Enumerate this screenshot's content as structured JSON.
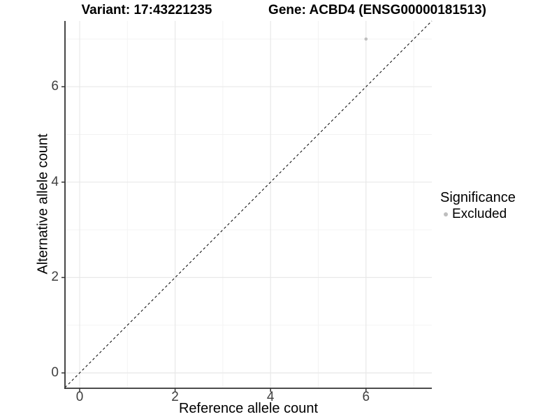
{
  "titles": {
    "variant": "Variant: 17:43221235",
    "gene": "Gene: ACBD4 (ENSG00000181513)"
  },
  "axes": {
    "x_label": "Reference allele count",
    "y_label": "Alternative allele count"
  },
  "legend": {
    "title": "Significance",
    "entries": [
      {
        "label": "Excluded",
        "color": "#bebebe",
        "marker": "dot-icon"
      }
    ],
    "position": "right"
  },
  "colors": {
    "background": "#ffffff",
    "grid_major": "#e8e8e8",
    "grid_minor": "#f2f2f2",
    "axis_line": "#333333",
    "tick_label": "#404040",
    "point": "#bebebe",
    "ref_line": "#000000"
  },
  "chart_data": {
    "type": "scatter",
    "title": "Variant: 17:43221235   |   Gene: ACBD4 (ENSG00000181513)",
    "xlabel": "Reference allele count",
    "ylabel": "Alternative allele count",
    "xlim": [
      -0.31,
      7.38
    ],
    "ylim": [
      -0.32,
      7.37
    ],
    "x_ticks": [
      0,
      2,
      4,
      6
    ],
    "y_ticks": [
      0,
      2,
      4,
      6
    ],
    "x_minor_ticks": [
      1,
      3,
      5,
      7
    ],
    "y_minor_ticks": [
      1,
      3,
      5,
      7
    ],
    "grid": true,
    "legend_position": "right",
    "series": [
      {
        "name": "Excluded",
        "color": "#bebebe",
        "points": [
          {
            "x": 6,
            "y": 7
          }
        ]
      }
    ],
    "reference_line": {
      "style": "dashed",
      "slope": 1,
      "intercept": 0,
      "color": "#000000"
    }
  }
}
